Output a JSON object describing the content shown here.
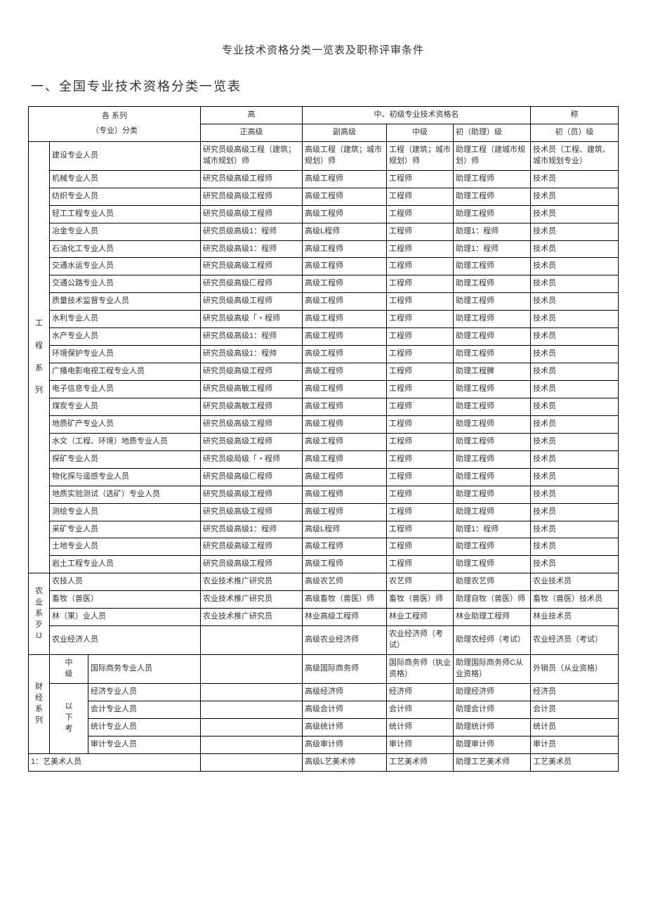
{
  "title": "专业技术资格分类一览表及职称评审条件",
  "section1_heading": "一、全国专业技术资格分类一览表",
  "table": {
    "border_color": "#000000",
    "background_color": "#ffffff",
    "font_size_pt": 11,
    "header": {
      "series_label": "各  系列",
      "specialty_label": "（专业）分类",
      "group_high": "高",
      "group_midlow": "中、初级专业技术资格名",
      "group_suffix": "称",
      "col_zhenggao": "正高级",
      "col_fugao": "副高级",
      "col_zhongji": "中级",
      "col_chuzhuli": "初（助理）级",
      "col_chuyuan": "初（员）级"
    },
    "categories": [
      {
        "name": "工\n\n程\n\n系\n\n列",
        "rows": [
          {
            "spec": "建设专业人员",
            "zg": "研究员级高级工程（建筑；城市规划）师",
            "fg": "高级工程（建筑；城市规划）师",
            "zj": "工程（建筑；城市规划）师",
            "czl": "助理工程（建城市规划）师",
            "cyl": "技术员（工程、建筑、城市规划专业）"
          },
          {
            "spec": "机械专业人员",
            "zg": "研究员级高级工程师",
            "fg": "高级工程师",
            "zj": "工程师",
            "czl": "助理工程师",
            "cyl": "技术员"
          },
          {
            "spec": "纺织专业人员",
            "zg": "研究员级高级工程师",
            "fg": "高级工程师",
            "zj": "工程师",
            "czl": "助理工程师",
            "cyl": "技术员"
          },
          {
            "spec": "轻工工程专业人员",
            "zg": "研究员级高级工程师",
            "fg": "高级工程师",
            "zj": "工程师",
            "czl": "助理工程师",
            "cyl": "技术员"
          },
          {
            "spec": "冶金专业人员",
            "zg": "研究员级高级1：程师",
            "fg": "高级L程师",
            "zj": "工程师",
            "czl": "助理1：程师",
            "cyl": "技术员"
          },
          {
            "spec": "石油化工专业人员",
            "zg": "研究员级高级1：程师",
            "fg": "高级工程师",
            "zj": "工程师",
            "czl": "助理1：程师",
            "cyl": "技术员"
          },
          {
            "spec": "交通水运专业人员",
            "zg": "研究员级高级工程师",
            "fg": "高级工程师",
            "zj": "工程师",
            "czl": "助理工程师",
            "cyl": "技术员"
          },
          {
            "spec": "交通公路专业人员",
            "zg": "研究员级高级匚程师",
            "fg": "高级工程师",
            "zj": "工程师",
            "czl": "助理工程师",
            "cyl": "技术员"
          },
          {
            "spec": "质量技术监督专业人员",
            "zg": "研究员级高级工程师",
            "fg": "高级工程师",
            "zj": "工程师",
            "czl": "助理工程师",
            "cyl": "技术员"
          },
          {
            "spec": "水利专业人员",
            "zg": "研究员级高级「・程师",
            "fg": "高级工程师",
            "zj": "工程师",
            "czl": "助理工程师",
            "cyl": "技术员"
          },
          {
            "spec": "水产专业人员",
            "zg": "研究员级高级1：程师",
            "fg": "高级工程师",
            "zj": "工程师",
            "czl": "助理工程师",
            "cyl": "技术员"
          },
          {
            "spec": "环境保护专业人员",
            "zg": "研究员级高级1：程帅",
            "fg": "高级工程师",
            "zj": "工程师",
            "czl": "助理工程师",
            "cyl": "技术员"
          },
          {
            "spec": "广播电影电视工程专业人员",
            "zg": "研究员级高级工程师",
            "fg": "高级工程师",
            "zj": "工程师",
            "czl": "助理工程脾",
            "cyl": "技术员"
          },
          {
            "spec": "电子信息专业人员",
            "zg": "研究员级高敏工程师",
            "fg": "高级工程师",
            "zj": "工程师",
            "czl": "助理工程师",
            "cyl": "技术员"
          },
          {
            "spec": "煤炭专业人员",
            "zg": "研究员级高敏工程师",
            "fg": "高级工程师",
            "zj": "工程师",
            "czl": "助理工程师",
            "cyl": "技术员"
          },
          {
            "spec": "地质矿产专业人员",
            "zg": "研究员级高级工程师",
            "fg": "高级工程师",
            "zj": "工程师",
            "czl": "助理工程师",
            "cyl": "技术员"
          },
          {
            "spec": "水文（工程、环境）地质专业人员",
            "zg": "研究员级高级工程师",
            "fg": "高级工程师",
            "zj": "工程师",
            "czl": "助理工程师",
            "cyl": "技术员"
          },
          {
            "spec": "探矿专业人员",
            "zg": "研究员级局级「・程师",
            "fg": "高级工程师",
            "zj": "工程师",
            "czl": "助理工程师",
            "cyl": "技术员"
          },
          {
            "spec": "物化探与遥感专业人员",
            "zg": "研究员级高级匚程师",
            "fg": "高级工程师",
            "zj": "工程师",
            "czl": "助理工程师",
            "cyl": "技术员"
          },
          {
            "spec": "地质实验测试（选矿）专业人员",
            "zg": "研究员级高级工程师",
            "fg": "高级工程师",
            "zj": "工程师",
            "czl": "助理工程师",
            "cyl": "技术员"
          },
          {
            "spec": "测绘专业人员",
            "zg": "研究员级高级工程师",
            "fg": "高级工程师",
            "zj": "工程师",
            "czl": "助理工程师",
            "cyl": "技术员"
          },
          {
            "spec": "采矿专业人员",
            "zg": "研究员级高级1：程师",
            "fg": "高级L程师",
            "zj": "工程师",
            "czl": "助理1：程师",
            "cyl": "技术员"
          },
          {
            "spec": "土地专业人员",
            "zg": "研究员级高级工程师",
            "fg": "高级工程师",
            "zj": "工程师",
            "czl": "助理工程师",
            "cyl": "技术员"
          },
          {
            "spec": "岩土工程专业人员",
            "zg": "研究员级高级工程师",
            "fg": "高级工程师",
            "zj": "工程师",
            "czl": "助理工程师",
            "cyl": "技术员"
          }
        ]
      },
      {
        "name": "农\n业\n系\n歹\nlJ",
        "rows": [
          {
            "spec": "农技人员",
            "zg": "农业技术推广研究员",
            "fg": "高级农艺师",
            "zj": "农艺师",
            "czl": "助理农艺师",
            "cyl": "农业技术员"
          },
          {
            "spec": "畜牧（兽医）",
            "zg": "农业技术推广研究员",
            "fg": "高级畜牧（兽医）师",
            "zj": "畜牧（兽医）师",
            "czl": "助理自牧（兽医）师",
            "cyl": "畜牧（兽医）技术员"
          },
          {
            "spec": "林（果）业人员",
            "zg": "农业技术推广研究员",
            "fg": "林业高级工程师",
            "zj": "林业工程师",
            "czl": "林业助理工程师",
            "cyl": "林业技术员"
          },
          {
            "spec": "农业经济人员",
            "zg": "",
            "fg": "高级农业经济师",
            "zj": "农业经济师（考试）",
            "czl": "助理农经师（考试）",
            "cyl": "农业经济员（考试）"
          }
        ]
      },
      {
        "name": "财\n经\n系\n列",
        "sub_top": "中\n级",
        "sub_bottom": "以\n下\n考",
        "rows": [
          {
            "spec": "国际商务专业人员",
            "zg": "",
            "fg": "高级国际商务师",
            "zj": "国际商务师（执业资格）",
            "czl": "助理国际商务师C从业资格）",
            "cyl": "外销员（从业资格）"
          },
          {
            "spec": "经济专业人员",
            "zg": "",
            "fg": "高级经济师",
            "zj": "经济师",
            "czl": "助理经济师",
            "cyl": "经济员"
          },
          {
            "spec": "会计专业人员",
            "zg": "",
            "fg": "高级会计师",
            "zj": "会计师",
            "czl": "助理会计师",
            "cyl": "会计员"
          },
          {
            "spec": "统计专业人员",
            "zg": "",
            "fg": "高级统计师",
            "zj": "统计师",
            "czl": "助理统计师",
            "cyl": "统计员"
          },
          {
            "spec": "审计专业人员",
            "zg": "",
            "fg": "高级审计师",
            "zj": "审计师",
            "czl": "助理审计师",
            "cyl": "审计员"
          }
        ]
      }
    ],
    "last_row": {
      "spec": "1：艺美术人员",
      "zg": "",
      "fg": "高级L艺美术帅",
      "zj": "工艺美术师",
      "czl": "助理工艺美术师",
      "cyl": "工艺美术员"
    }
  }
}
